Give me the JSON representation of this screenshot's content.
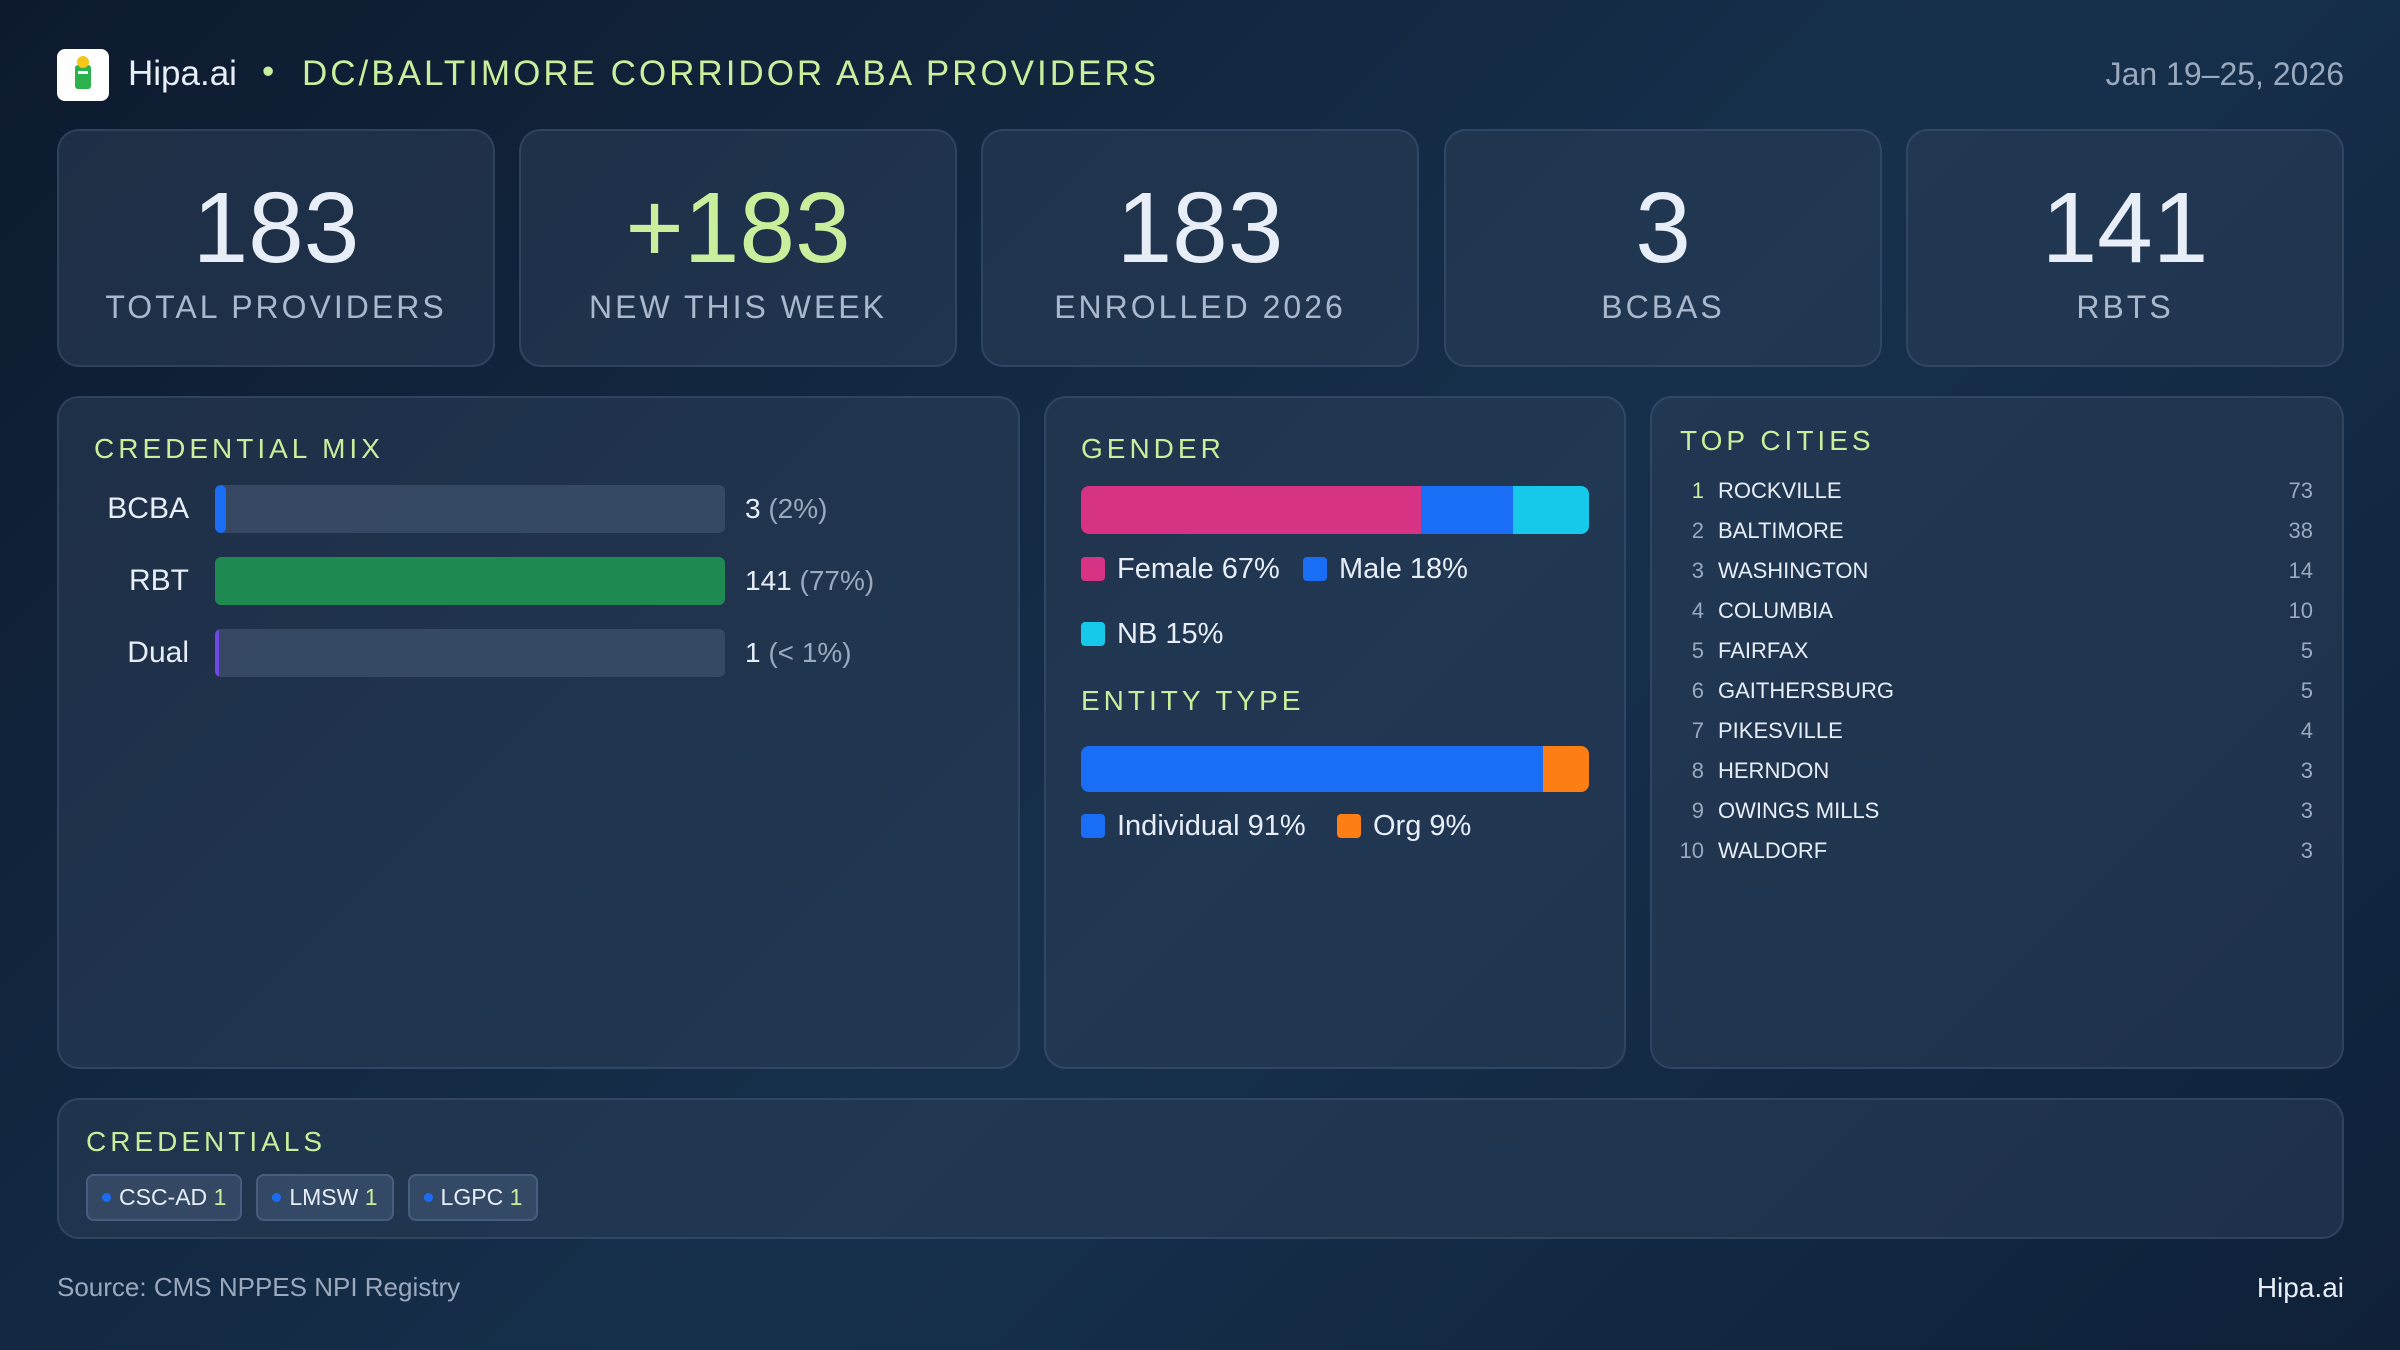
{
  "header": {
    "brand": "Hipa.ai",
    "separator": "•",
    "title": "DC/BALTIMORE CORRIDOR ABA PROVIDERS",
    "date": "Jan 19–25, 2026"
  },
  "kpis": [
    {
      "value": 183,
      "label": "TOTAL PROVIDERS"
    },
    {
      "value": "+183",
      "label": "NEW THIS WEEK",
      "accent": true
    },
    {
      "value": 183,
      "label": "ENROLLED 2026"
    },
    {
      "value": 3,
      "label": "BCBAS"
    },
    {
      "value": 141,
      "label": "RBTS"
    }
  ],
  "credential_mix": {
    "title": "CREDENTIAL MIX",
    "rows": [
      {
        "name": "BCBA",
        "count": 3,
        "share": "(2%)",
        "color": "#1a6ef5"
      },
      {
        "name": "RBT",
        "count": 141,
        "share": "(77%)",
        "color": "#1e8a52"
      },
      {
        "name": "Dual",
        "count": 1,
        "share": "(< 1%)",
        "color": "#7048e8"
      }
    ]
  },
  "gender": {
    "title": "GENDER",
    "segments": [
      {
        "name": "Female",
        "value": 67,
        "value_label": "67%",
        "color": "#d63384"
      },
      {
        "name": "Male",
        "value": 18,
        "value_label": "18%",
        "color": "#1a6ef5"
      },
      {
        "name": "NB",
        "value": 15,
        "value_label": "15%",
        "color": "#16c8ea"
      }
    ]
  },
  "entity_type": {
    "title": "ENTITY TYPE",
    "segments": [
      {
        "name": "Individual",
        "value": 91,
        "value_label": "91%",
        "color": "#1a6ef5"
      },
      {
        "name": "Org",
        "value": 9,
        "value_label": "9%",
        "color": "#fd7e14"
      }
    ]
  },
  "top_cities": {
    "title": "TOP CITIES",
    "rows": [
      {
        "rank": 1,
        "name": "ROCKVILLE",
        "count": 73
      },
      {
        "rank": 2,
        "name": "BALTIMORE",
        "count": 38
      },
      {
        "rank": 3,
        "name": "WASHINGTON",
        "count": 14
      },
      {
        "rank": 4,
        "name": "COLUMBIA",
        "count": 10
      },
      {
        "rank": 5,
        "name": "FAIRFAX",
        "count": 5
      },
      {
        "rank": 6,
        "name": "GAITHERSBURG",
        "count": 5
      },
      {
        "rank": 7,
        "name": "PIKESVILLE",
        "count": 4
      },
      {
        "rank": 8,
        "name": "HERNDON",
        "count": 3
      },
      {
        "rank": 9,
        "name": "OWINGS MILLS",
        "count": 3
      },
      {
        "rank": 10,
        "name": "WALDORF",
        "count": 3
      }
    ]
  },
  "credentials": {
    "title": "CREDENTIALS",
    "chips": [
      {
        "name": "CSC-AD",
        "count": 1
      },
      {
        "name": "LMSW",
        "count": 1
      },
      {
        "name": "LGPC",
        "count": 1
      }
    ]
  },
  "footer": {
    "source": "Source: CMS NPPES NPI Registry",
    "brand": "Hipa.ai"
  }
}
